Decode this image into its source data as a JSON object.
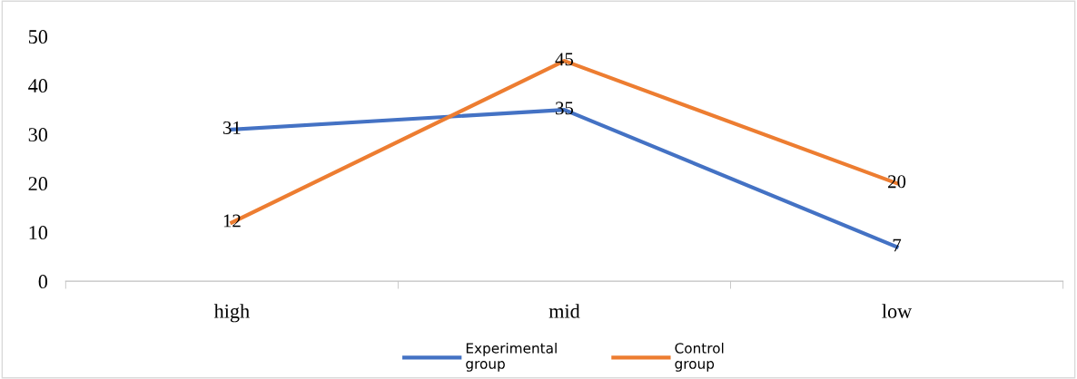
{
  "chart_data": {
    "type": "line",
    "categories": [
      "high",
      "mid",
      "low"
    ],
    "series": [
      {
        "name": "Experimental\ngroup",
        "color": "#4472c4",
        "values": [
          31,
          35,
          7
        ]
      },
      {
        "name": "Control\ngroup",
        "color": "#ed7d31",
        "values": [
          12,
          45,
          20
        ]
      }
    ],
    "ylim": [
      0,
      50
    ],
    "yticks": [
      0,
      10,
      20,
      30,
      40,
      50
    ],
    "data_labels": true,
    "legend": "bottom",
    "grid": false,
    "line_style": "solid"
  }
}
